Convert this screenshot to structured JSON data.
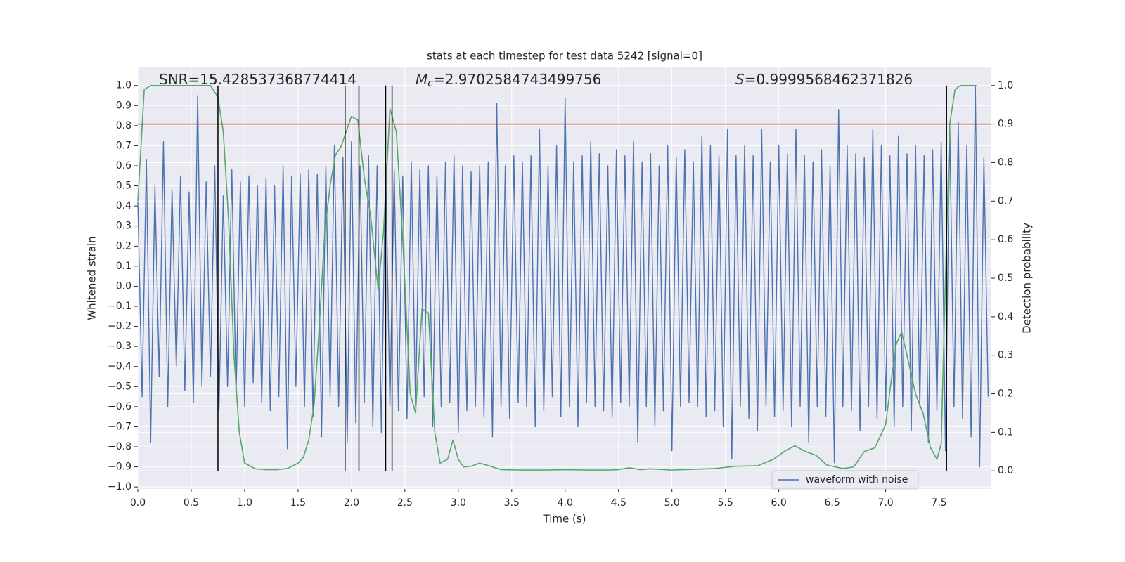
{
  "chart_data": {
    "type": "line",
    "title": "stats at each timestep for test data 5242 [signal=0]",
    "xlabel": "Time (s)",
    "ylabel": "Whitened strain",
    "y2label": "Detection probability",
    "annotations": [
      {
        "text": "SNR=15.428537368774414"
      },
      {
        "symbol": "M",
        "subscript": "c",
        "text": "=2.9702584743499756"
      },
      {
        "symbol": "S",
        "text": "=0.9999568462371826"
      }
    ],
    "xlim": [
      0,
      7.99
    ],
    "ylim": [
      -1.01,
      1.09
    ],
    "y2lim": [
      -0.047,
      1.047
    ],
    "xticks": [
      {
        "value": 0,
        "label": "0.0"
      },
      0.5,
      {
        "value": 1,
        "label": "1.0"
      },
      1.5,
      {
        "value": 2,
        "label": "2.0"
      },
      2.5,
      {
        "value": 3,
        "label": "3.0"
      },
      3.5,
      {
        "value": 4,
        "label": "4.0"
      },
      4.5,
      {
        "value": 5,
        "label": "5.0"
      },
      5.5,
      {
        "value": 6,
        "label": "6.0"
      },
      6.5,
      {
        "value": 7,
        "label": "7.0"
      },
      7.5
    ],
    "yticks": [
      {
        "value": 1,
        "label": "1.0"
      },
      0.9,
      0.8,
      0.7,
      0.6,
      0.5,
      0.4,
      0.3,
      0.2,
      0.1,
      {
        "value": 0,
        "label": "0.0"
      },
      {
        "value": -0.1,
        "label": "−0.1"
      },
      {
        "value": -0.2,
        "label": "−0.2"
      },
      {
        "value": -0.3,
        "label": "−0.3"
      },
      {
        "value": -0.4,
        "label": "−0.4"
      },
      {
        "value": -0.5,
        "label": "−0.5"
      },
      {
        "value": -0.6,
        "label": "−0.6"
      },
      {
        "value": -0.7,
        "label": "−0.7"
      },
      {
        "value": -0.8,
        "label": "−0.8"
      },
      {
        "value": -0.9,
        "label": "−0.9"
      },
      {
        "value": -1,
        "label": "−1.0"
      }
    ],
    "y2ticks": [
      {
        "value": 0,
        "label": "0.0"
      },
      0.1,
      0.2,
      0.3,
      0.4,
      0.5,
      0.6,
      0.7,
      0.8,
      0.9,
      {
        "value": 1,
        "label": "1.0"
      }
    ],
    "grid": true,
    "legend": "lower right",
    "series": [
      {
        "name": "waveform with noise",
        "color": "#4c72b0",
        "x": [
          0,
          0.04,
          0.08,
          0.12,
          0.16,
          0.2,
          0.24,
          0.28,
          0.32,
          0.36,
          0.4,
          0.44,
          0.48,
          0.52,
          0.56,
          0.6,
          0.64,
          0.68,
          0.72,
          0.76,
          0.8,
          0.84,
          0.88,
          0.92,
          0.96,
          1,
          1.04,
          1.08,
          1.12,
          1.16,
          1.2,
          1.24,
          1.28,
          1.32,
          1.36,
          1.4,
          1.44,
          1.48,
          1.52,
          1.56,
          1.6,
          1.64,
          1.68,
          1.72,
          1.76,
          1.8,
          1.84,
          1.88,
          1.92,
          1.96,
          2,
          2.04,
          2.08,
          2.12,
          2.16,
          2.2,
          2.24,
          2.28,
          2.32,
          2.36,
          2.4,
          2.44,
          2.48,
          2.52,
          2.56,
          2.6,
          2.64,
          2.68,
          2.72,
          2.76,
          2.8,
          2.84,
          2.88,
          2.92,
          2.96,
          3,
          3.04,
          3.08,
          3.12,
          3.16,
          3.2,
          3.24,
          3.28,
          3.32,
          3.36,
          3.4,
          3.44,
          3.48,
          3.52,
          3.56,
          3.6,
          3.64,
          3.68,
          3.72,
          3.76,
          3.8,
          3.84,
          3.88,
          3.92,
          3.96,
          4,
          4.04,
          4.08,
          4.12,
          4.16,
          4.2,
          4.24,
          4.28,
          4.32,
          4.36,
          4.4,
          4.44,
          4.48,
          4.52,
          4.56,
          4.6,
          4.64,
          4.68,
          4.72,
          4.76,
          4.8,
          4.84,
          4.88,
          4.92,
          4.96,
          5,
          5.04,
          5.08,
          5.12,
          5.16,
          5.2,
          5.24,
          5.28,
          5.32,
          5.36,
          5.4,
          5.44,
          5.48,
          5.52,
          5.56,
          5.6,
          5.64,
          5.68,
          5.72,
          5.76,
          5.8,
          5.84,
          5.88,
          5.92,
          5.96,
          6,
          6.04,
          6.08,
          6.12,
          6.16,
          6.2,
          6.24,
          6.28,
          6.32,
          6.36,
          6.4,
          6.44,
          6.48,
          6.52,
          6.56,
          6.6,
          6.64,
          6.68,
          6.72,
          6.76,
          6.8,
          6.84,
          6.88,
          6.92,
          6.96,
          7,
          7.04,
          7.08,
          7.12,
          7.16,
          7.2,
          7.24,
          7.28,
          7.32,
          7.36,
          7.4,
          7.44,
          7.48,
          7.52,
          7.56,
          7.6,
          7.64,
          7.68,
          7.72,
          7.76,
          7.8,
          7.84,
          7.88,
          7.92,
          7.96
        ],
        "values": [
          0.42,
          -0.55,
          0.63,
          -0.78,
          0.5,
          -0.45,
          0.72,
          -0.6,
          0.48,
          -0.4,
          0.55,
          -0.52,
          0.47,
          -0.58,
          0.95,
          -0.5,
          0.52,
          -0.45,
          0.6,
          -0.62,
          0.45,
          -0.5,
          0.58,
          -0.55,
          0.52,
          -0.6,
          0.55,
          -0.48,
          0.5,
          -0.58,
          0.54,
          -0.62,
          0.5,
          -0.55,
          0.6,
          -0.81,
          0.55,
          -0.5,
          0.56,
          -0.6,
          0.58,
          -0.65,
          0.56,
          -0.75,
          0.6,
          -0.55,
          0.7,
          -0.6,
          0.64,
          -0.78,
          0.72,
          -0.68,
          0.6,
          -0.58,
          0.65,
          -0.7,
          0.6,
          -0.73,
          0.62,
          -0.6,
          0.58,
          -0.62,
          0.55,
          -0.66,
          0.62,
          -0.6,
          0.58,
          -0.55,
          0.6,
          -0.7,
          0.55,
          -0.6,
          0.62,
          -0.58,
          0.65,
          -0.73,
          0.6,
          -0.62,
          0.57,
          -0.6,
          0.6,
          -0.65,
          0.62,
          -0.75,
          0.91,
          -0.6,
          0.6,
          -0.66,
          0.65,
          -0.58,
          0.62,
          -0.6,
          0.65,
          -0.7,
          0.78,
          -0.62,
          0.6,
          -0.55,
          0.7,
          -0.65,
          0.94,
          -0.6,
          0.62,
          -0.7,
          0.65,
          -0.58,
          0.72,
          -0.6,
          0.66,
          -0.62,
          0.6,
          -0.65,
          0.68,
          -0.58,
          0.65,
          -0.6,
          0.72,
          -0.78,
          0.62,
          -0.6,
          0.66,
          -0.7,
          0.6,
          -0.62,
          0.7,
          -0.82,
          0.64,
          -0.6,
          0.68,
          -0.58,
          0.62,
          -0.6,
          0.75,
          -0.65,
          0.7,
          -0.62,
          0.65,
          -0.7,
          0.78,
          -0.86,
          0.65,
          -0.6,
          0.7,
          -0.66,
          0.65,
          -0.72,
          0.78,
          -0.6,
          0.62,
          -0.65,
          0.7,
          -0.62,
          0.66,
          -0.7,
          0.78,
          -0.6,
          0.65,
          -0.78,
          0.62,
          -0.6,
          0.68,
          -0.65,
          0.6,
          -0.88,
          0.88,
          -0.6,
          0.7,
          -0.62,
          0.66,
          -0.72,
          0.64,
          -0.6,
          0.78,
          -0.66,
          0.7,
          -0.62,
          0.65,
          -0.7,
          0.75,
          -0.6,
          0.66,
          -0.72,
          0.7,
          -0.6,
          0.65,
          -0.78,
          0.68,
          -0.62,
          0.72,
          -0.82,
          0.8,
          -0.6,
          0.82,
          -0.66,
          0.7,
          -0.75,
          1.0,
          -0.9,
          0.64,
          -0.55
        ]
      },
      {
        "color": "#55a868",
        "axis": "y2",
        "x": [
          0,
          0.06,
          0.12,
          0.2,
          0.3,
          0.4,
          0.5,
          0.6,
          0.68,
          0.75,
          0.8,
          0.85,
          0.9,
          0.95,
          1.0,
          1.1,
          1.2,
          1.3,
          1.4,
          1.5,
          1.55,
          1.6,
          1.65,
          1.7,
          1.75,
          1.8,
          1.85,
          1.9,
          1.95,
          2.0,
          2.06,
          2.12,
          2.18,
          2.25,
          2.3,
          2.36,
          2.42,
          2.48,
          2.55,
          2.6,
          2.66,
          2.72,
          2.78,
          2.83,
          2.9,
          2.95,
          3.0,
          3.05,
          3.12,
          3.2,
          3.3,
          3.4,
          3.6,
          3.8,
          4.0,
          4.2,
          4.4,
          4.5,
          4.6,
          4.7,
          4.8,
          5.0,
          5.2,
          5.4,
          5.6,
          5.8,
          5.95,
          6.05,
          6.15,
          6.25,
          6.35,
          6.45,
          6.6,
          6.7,
          6.8,
          6.9,
          7.0,
          7.05,
          7.1,
          7.15,
          7.2,
          7.28,
          7.35,
          7.42,
          7.48,
          7.52,
          7.56,
          7.6,
          7.65,
          7.7,
          7.85
        ],
        "values": [
          0.7,
          0.99,
          1.0,
          1.0,
          1.0,
          1.0,
          1.0,
          1.0,
          1.0,
          0.97,
          0.88,
          0.65,
          0.3,
          0.1,
          0.02,
          0.005,
          0.003,
          0.003,
          0.006,
          0.02,
          0.035,
          0.08,
          0.17,
          0.38,
          0.62,
          0.74,
          0.82,
          0.84,
          0.88,
          0.92,
          0.91,
          0.76,
          0.66,
          0.47,
          0.62,
          0.94,
          0.88,
          0.6,
          0.2,
          0.15,
          0.42,
          0.41,
          0.1,
          0.02,
          0.03,
          0.08,
          0.03,
          0.01,
          0.012,
          0.02,
          0.012,
          0.003,
          0.002,
          0.002,
          0.003,
          0.002,
          0.002,
          0.003,
          0.008,
          0.003,
          0.005,
          0.002,
          0.004,
          0.006,
          0.012,
          0.013,
          0.03,
          0.05,
          0.065,
          0.05,
          0.04,
          0.015,
          0.006,
          0.01,
          0.05,
          0.06,
          0.12,
          0.23,
          0.33,
          0.36,
          0.3,
          0.2,
          0.15,
          0.06,
          0.03,
          0.07,
          0.5,
          0.9,
          0.99,
          1.0,
          1.0
        ]
      }
    ],
    "vlines": {
      "x": [
        0.75,
        1.94,
        2.07,
        2.32,
        2.38,
        7.57
      ],
      "color": "#000000"
    },
    "hline": {
      "value": 0.9,
      "axis": "y2",
      "color": "#c0392b"
    }
  }
}
